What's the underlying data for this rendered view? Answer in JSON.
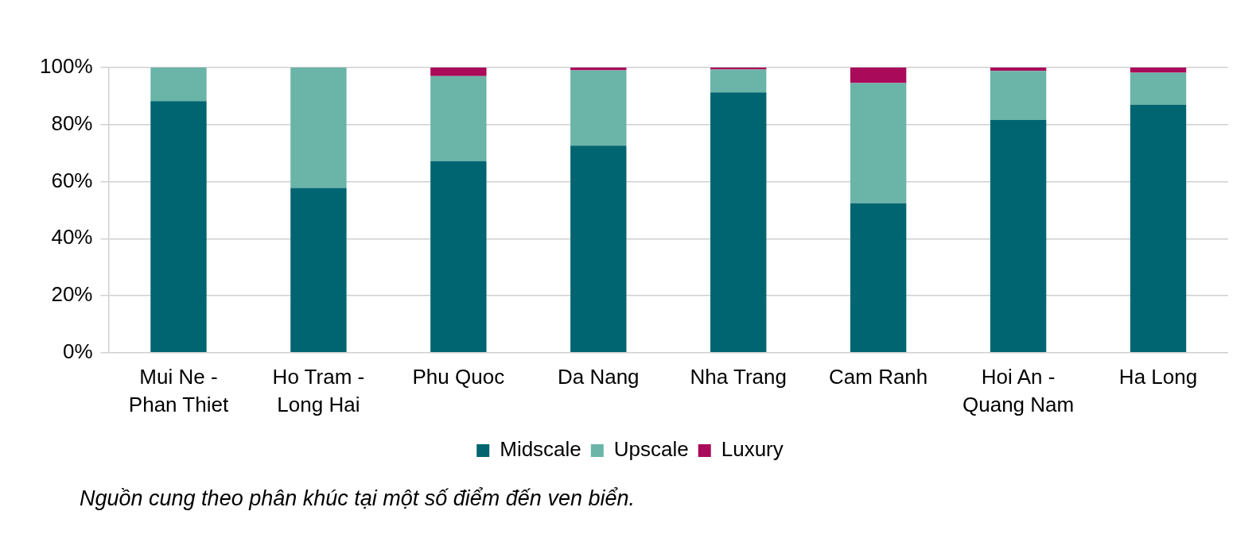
{
  "chart_data": {
    "type": "bar",
    "stacked": true,
    "categories": [
      "Mui Ne - Phan Thiet",
      "Ho Tram - Long Hai",
      "Phu Quoc",
      "Da Nang",
      "Nha Trang",
      "Cam Ranh",
      "Hoi An - Quang Nam",
      "Ha Long"
    ],
    "series": [
      {
        "name": "Midscale",
        "color": "#006570",
        "values": [
          88.2,
          57.8,
          67.2,
          72.6,
          91.3,
          52.4,
          81.6,
          87.0
        ]
      },
      {
        "name": "Upscale",
        "color": "#6ab4a8",
        "values": [
          11.8,
          42.2,
          29.8,
          26.4,
          8.0,
          42.2,
          17.2,
          11.2
        ]
      },
      {
        "name": "Luxury",
        "color": "#aa0a5a",
        "values": [
          0,
          0,
          3.0,
          1.0,
          0.7,
          5.4,
          1.2,
          1.8
        ]
      }
    ],
    "ylim": [
      0,
      100
    ],
    "yticks": [
      {
        "value": 0,
        "label": "0%"
      },
      {
        "value": 20,
        "label": "20%"
      },
      {
        "value": 40,
        "label": "40%"
      },
      {
        "value": 60,
        "label": "60%"
      },
      {
        "value": 80,
        "label": "80%"
      },
      {
        "value": 100,
        "label": "100%"
      }
    ],
    "grid": "y",
    "legend": "bottom",
    "annotations": [
      "Nguồn cung theo phân khúc tại một số điểm đến ven biển."
    ]
  }
}
